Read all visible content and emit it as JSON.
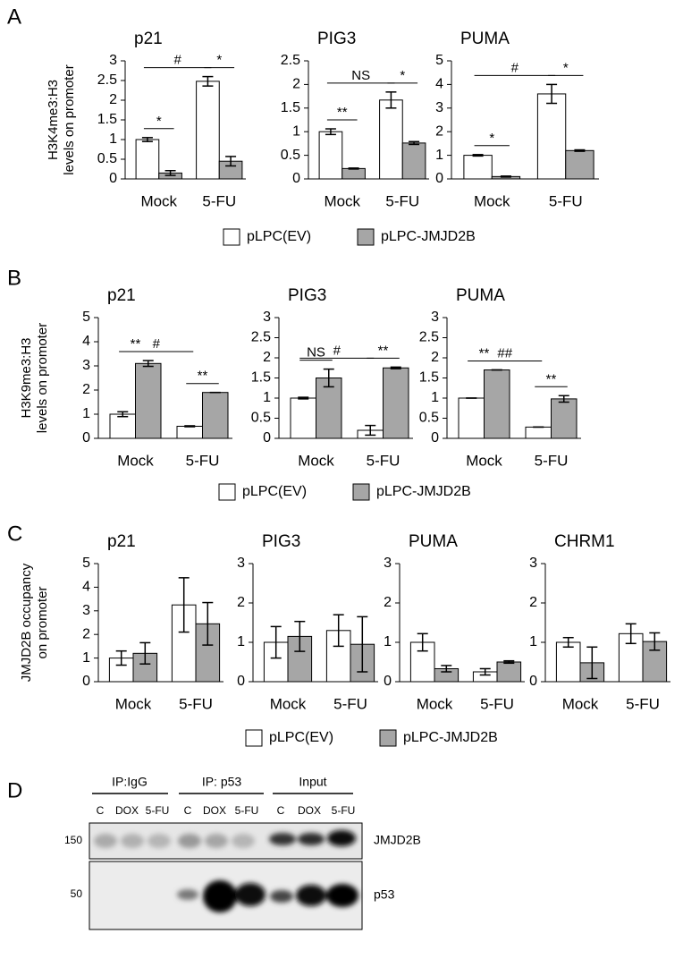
{
  "panels": [
    "A",
    "B",
    "C",
    "D"
  ],
  "chart_data": [
    {
      "type": "bar",
      "title": "p21",
      "ylabel": [
        "H3K4me3:H3",
        "levels on promoter"
      ],
      "categories": [
        "Mock",
        "5-FU"
      ],
      "series": [
        {
          "name": "pLPC(EV)",
          "color": "#ffffff",
          "values": [
            1.0,
            2.48
          ],
          "errors": [
            0.05,
            0.12
          ]
        },
        {
          "name": "pLPC-JMJD2B",
          "color": "#a6a6a6",
          "values": [
            0.15,
            0.45
          ],
          "errors": [
            0.06,
            0.12
          ]
        }
      ],
      "ylim": [
        0,
        3
      ],
      "yticks": [
        0,
        0.5,
        1,
        1.5,
        2,
        2.5,
        3
      ],
      "annotations": [
        "*",
        "#",
        "*"
      ]
    },
    {
      "type": "bar",
      "title": "PIG3",
      "categories": [
        "Mock",
        "5-FU"
      ],
      "series": [
        {
          "color": "#ffffff",
          "values": [
            1.0,
            1.67
          ],
          "errors": [
            0.06,
            0.17
          ]
        },
        {
          "color": "#a6a6a6",
          "values": [
            0.22,
            0.76
          ],
          "errors": [
            0.01,
            0.03
          ]
        }
      ],
      "ylim": [
        0,
        2.5
      ],
      "yticks": [
        0,
        0.5,
        1,
        1.5,
        2,
        2.5
      ],
      "annotations": [
        "**",
        "NS",
        "*"
      ]
    },
    {
      "type": "bar",
      "title": "PUMA",
      "categories": [
        "Mock",
        "5-FU"
      ],
      "series": [
        {
          "color": "#ffffff",
          "values": [
            1.0,
            3.6
          ],
          "errors": [
            0.03,
            0.4
          ]
        },
        {
          "color": "#a6a6a6",
          "values": [
            0.1,
            1.2
          ],
          "errors": [
            0.02,
            0.03
          ]
        }
      ],
      "ylim": [
        0,
        5
      ],
      "yticks": [
        0,
        1,
        2,
        3,
        4,
        5
      ],
      "annotations": [
        "*",
        "#",
        "*"
      ]
    },
    {
      "type": "bar",
      "title": "p21",
      "ylabel": [
        "H3K9me3:H3",
        "levels on promoter"
      ],
      "categories": [
        "Mock",
        "5-FU"
      ],
      "series": [
        {
          "name": "pLPC(EV)",
          "color": "#ffffff",
          "values": [
            1.0,
            0.5
          ],
          "errors": [
            0.1,
            0.02
          ]
        },
        {
          "name": "pLPC-JMJD2B",
          "color": "#a6a6a6",
          "values": [
            3.1,
            1.9
          ],
          "errors": [
            0.12,
            0
          ]
        }
      ],
      "ylim": [
        0,
        5
      ],
      "yticks": [
        0,
        1,
        2,
        3,
        4,
        5
      ],
      "annotations": [
        "**",
        "#",
        "**"
      ]
    },
    {
      "type": "bar",
      "title": "PIG3",
      "categories": [
        "Mock",
        "5-FU"
      ],
      "series": [
        {
          "color": "#ffffff",
          "values": [
            1.0,
            0.2
          ],
          "errors": [
            0.02,
            0.12
          ]
        },
        {
          "color": "#a6a6a6",
          "values": [
            1.5,
            1.75
          ],
          "errors": [
            0.22,
            0.02
          ]
        }
      ],
      "ylim": [
        0,
        3
      ],
      "yticks": [
        0,
        0.5,
        1,
        1.5,
        2,
        2.5,
        3
      ],
      "annotations": [
        "NS",
        "#",
        "**"
      ]
    },
    {
      "type": "bar",
      "title": "PUMA",
      "categories": [
        "Mock",
        "5-FU"
      ],
      "series": [
        {
          "color": "#ffffff",
          "values": [
            1.0,
            0.28
          ],
          "errors": [
            0,
            0
          ]
        },
        {
          "color": "#a6a6a6",
          "values": [
            1.7,
            0.98
          ],
          "errors": [
            0,
            0.08
          ]
        }
      ],
      "ylim": [
        0,
        3
      ],
      "yticks": [
        0,
        0.5,
        1,
        1.5,
        2,
        2.5,
        3
      ],
      "annotations": [
        "**",
        "##",
        "**"
      ]
    },
    {
      "type": "bar",
      "title": "p21",
      "ylabel": [
        "JMJD2B occupancy",
        "on promoter"
      ],
      "categories": [
        "Mock",
        "5-FU"
      ],
      "series": [
        {
          "name": "pLPC(EV)",
          "color": "#ffffff",
          "values": [
            1.0,
            3.25
          ],
          "errors": [
            0.3,
            1.15
          ]
        },
        {
          "name": "pLPC-JMJD2B",
          "color": "#a6a6a6",
          "values": [
            1.2,
            2.45
          ],
          "errors": [
            0.45,
            0.9
          ]
        }
      ],
      "ylim": [
        0,
        5
      ],
      "yticks": [
        0,
        1,
        2,
        3,
        4,
        5
      ]
    },
    {
      "type": "bar",
      "title": "PIG3",
      "categories": [
        "Mock",
        "5-FU"
      ],
      "series": [
        {
          "color": "#ffffff",
          "values": [
            1.0,
            1.3
          ],
          "errors": [
            0.4,
            0.4
          ]
        },
        {
          "color": "#a6a6a6",
          "values": [
            1.15,
            0.95
          ],
          "errors": [
            0.38,
            0.7
          ]
        }
      ],
      "ylim": [
        0,
        3
      ],
      "yticks": [
        0,
        1,
        2,
        3
      ]
    },
    {
      "type": "bar",
      "title": "PUMA",
      "categories": [
        "Mock",
        "5-FU"
      ],
      "series": [
        {
          "color": "#ffffff",
          "values": [
            1.0,
            0.25
          ],
          "errors": [
            0.22,
            0.08
          ]
        },
        {
          "color": "#a6a6a6",
          "values": [
            0.33,
            0.5
          ],
          "errors": [
            0.08,
            0.03
          ]
        }
      ],
      "ylim": [
        0,
        3
      ],
      "yticks": [
        0,
        1,
        2,
        3
      ]
    },
    {
      "type": "bar",
      "title": "CHRM1",
      "categories": [
        "Mock",
        "5-FU"
      ],
      "series": [
        {
          "color": "#ffffff",
          "values": [
            1.0,
            1.22
          ],
          "errors": [
            0.12,
            0.25
          ]
        },
        {
          "color": "#a6a6a6",
          "values": [
            0.48,
            1.02
          ],
          "errors": [
            0.4,
            0.22
          ]
        }
      ],
      "ylim": [
        0,
        3
      ],
      "yticks": [
        0,
        1,
        2,
        3
      ]
    }
  ],
  "blot": {
    "groups": [
      "IP:IgG",
      "IP: p53",
      "Input"
    ],
    "lanes": [
      "C",
      "DOX",
      "5-FU",
      "C",
      "DOX",
      "5-FU",
      "C",
      "DOX",
      "5-FU"
    ],
    "markers": [
      150,
      50
    ],
    "proteins": [
      "JMJD2B",
      "p53"
    ]
  }
}
